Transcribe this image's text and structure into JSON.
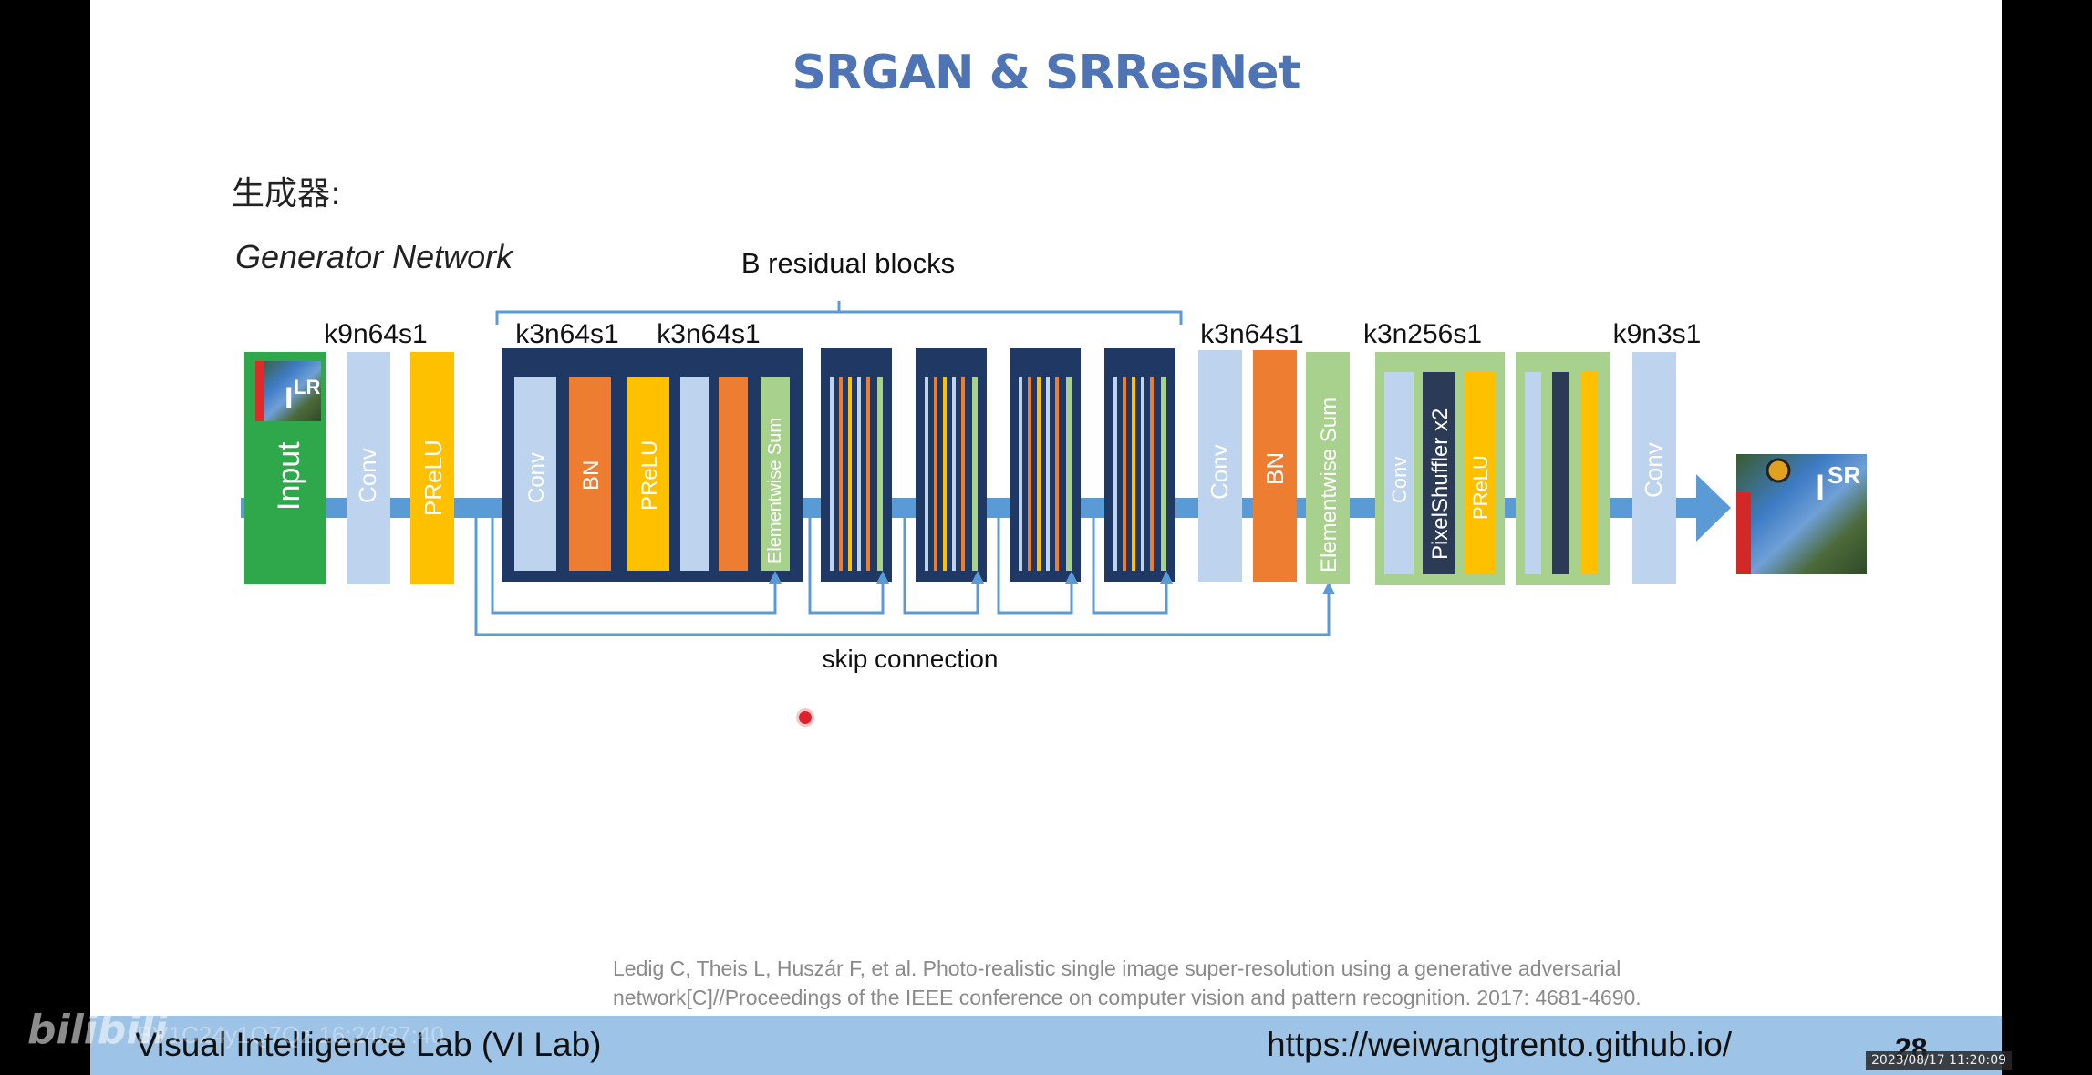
{
  "slide": {
    "title": "SRGAN & SRResNet",
    "heading": "生成器:",
    "citation_line1": "Ledig C, Theis L, Huszár F, et al. Photo-realistic single image super-resolution using a generative adversarial",
    "citation_line2": "network[C]//Proceedings of the IEEE conference on computer vision and pattern recognition. 2017: 4681-4690.",
    "page_number": "28"
  },
  "footer": {
    "left": "Visual Intelligence Lab (VI Lab)",
    "right": "https://weiwangtrento.github.io/"
  },
  "overlay": {
    "watermark": "bilibili",
    "watermark_code": "BV1C24y1Q7Qz 16:24/37:40",
    "timestamp": "2023/08/17 11:20:09"
  },
  "diagram": {
    "title": "Generator Network",
    "residual_label": "B residual blocks",
    "skip_label": "skip connection",
    "kernel_labels": {
      "k1": "k9n64s1",
      "k2": "k3n64s1",
      "k3": "k3n64s1",
      "k4": "k3n64s1",
      "k5": "k3n256s1",
      "k6": "k9n3s1"
    },
    "block_labels": {
      "input": "Input",
      "conv": "Conv",
      "bn": "BN",
      "prelu": "PReLU",
      "elementwise_sum": "Elementwise Sum",
      "pixelshuffler": "PixelShuffler x2"
    },
    "image_labels": {
      "lr": "LR",
      "sr": "SR",
      "i": "I"
    },
    "colors": {
      "input": "#2ea84a",
      "conv": "#bdd3ee",
      "bn": "#ed7d31",
      "prelu": "#ffc000",
      "sum": "#a9d18e",
      "residual_bg": "#1f3864",
      "arrow": "#5b9bd5",
      "pixelshuffler": "#2b3a55"
    }
  }
}
